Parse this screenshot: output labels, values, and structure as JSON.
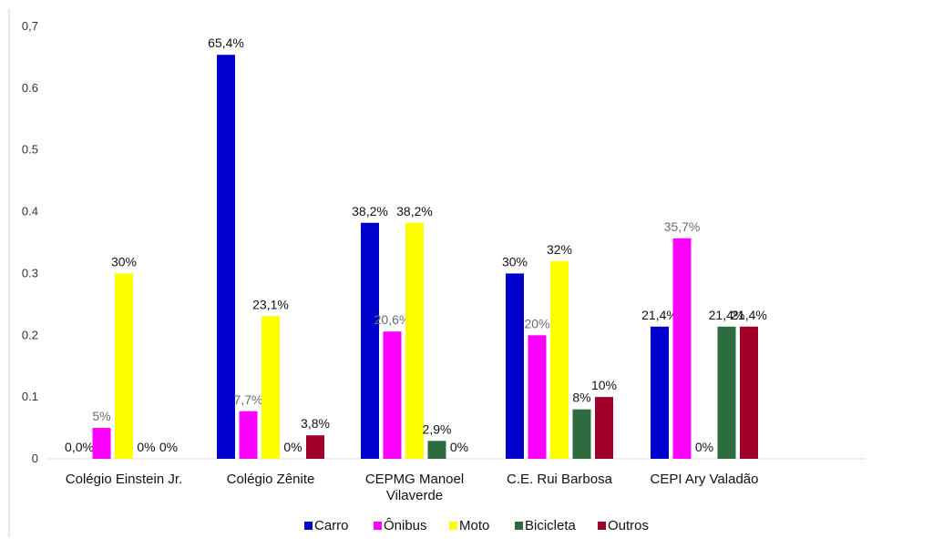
{
  "chart_data": {
    "type": "bar",
    "title": "",
    "xlabel": "",
    "ylabel": "",
    "ylim": [
      0,
      0.7
    ],
    "yticks": [
      "0",
      "0.1",
      "0.2",
      "0.3",
      "0.4",
      "0.5",
      "0.6",
      "0,7"
    ],
    "grid": false,
    "legend_position": "bottom",
    "categories": [
      [
        "Colégio Einstein Jr."
      ],
      [
        "Colégio Zênite"
      ],
      [
        "CEPMG Manoel",
        "Vilaverde"
      ],
      [
        "C.E. Rui Barbosa"
      ],
      [
        "CEPI Ary Valadão"
      ]
    ],
    "series": [
      {
        "name": "Carro",
        "color": "#0000CC",
        "values": [
          0.0,
          0.654,
          0.382,
          0.3,
          0.214
        ],
        "labels": [
          "0,0%",
          "65,4%",
          "38,2%",
          "30%",
          "21,4%"
        ]
      },
      {
        "name": "Ônibus",
        "color": "#FF00FF",
        "values": [
          0.05,
          0.077,
          0.206,
          0.2,
          0.357
        ],
        "labels": [
          "5%",
          "7,7%",
          "20,6%",
          "20%",
          "35,7%"
        ]
      },
      {
        "name": "Moto",
        "color": "#FFFF00",
        "values": [
          0.3,
          0.231,
          0.382,
          0.32,
          0.0
        ],
        "labels": [
          "30%",
          "23,1%",
          "38,2%",
          "32%",
          "0%"
        ]
      },
      {
        "name": "Bicicleta",
        "color": "#2E6B3E",
        "values": [
          0.0,
          0.0,
          0.029,
          0.08,
          0.214
        ],
        "labels": [
          "0%",
          "0%",
          "2,9%",
          "8%",
          "21,4%"
        ]
      },
      {
        "name": "Outros",
        "color": "#A00028",
        "values": [
          0.0,
          0.038,
          0.0,
          0.1,
          0.214
        ],
        "labels": [
          "0%",
          "3,8%",
          "0%",
          "10%",
          "21,4%"
        ]
      }
    ]
  }
}
